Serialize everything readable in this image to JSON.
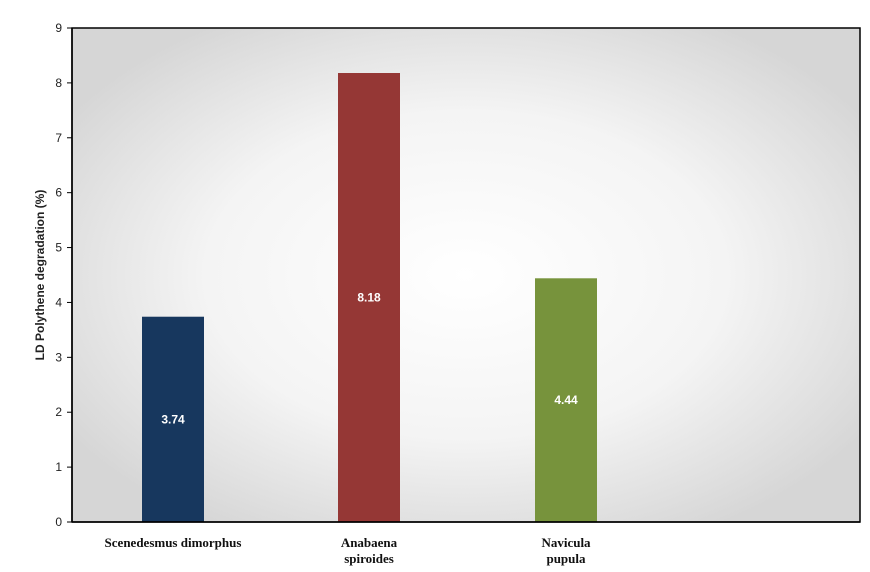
{
  "chart_data": {
    "type": "bar",
    "categories": [
      [
        "Scenedesmus dimorphus"
      ],
      [
        "Anabaena",
        "spiroides"
      ],
      [
        "Navicula",
        "pupula"
      ]
    ],
    "values": [
      3.74,
      8.18,
      4.44
    ],
    "value_labels": [
      "3.74",
      "8.18",
      "4.44"
    ],
    "bar_colors": [
      "#17375e",
      "#953735",
      "#77933c"
    ],
    "title": "",
    "xlabel": "",
    "ylabel": "LD Polythene degradation (%)",
    "ylim": [
      0,
      9
    ],
    "yticks": [
      "0",
      "1",
      "2",
      "3",
      "4",
      "5",
      "6",
      "7",
      "8",
      "9"
    ],
    "grid": false,
    "legend": "none"
  }
}
